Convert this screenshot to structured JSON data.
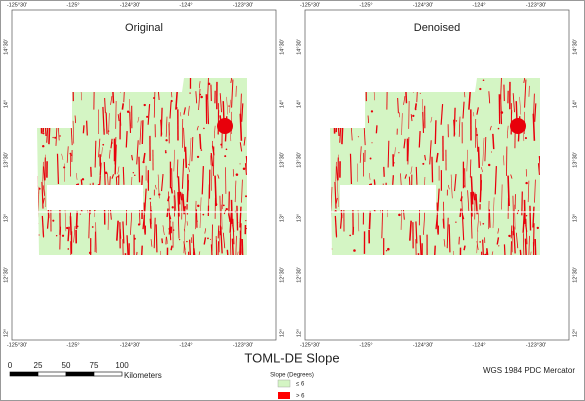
{
  "panels": [
    {
      "title": "Original",
      "top_labels": [
        "-125°30'",
        "-125°",
        "-124°30'",
        "-124°",
        "-123°30'"
      ],
      "bottom_labels": [
        "-125°30'",
        "-125°",
        "-124°30'",
        "-124°",
        "-123°30'"
      ],
      "left_labels": [
        "14°30'",
        "14°",
        "13°30'",
        "13°",
        "12°30'",
        "12°"
      ],
      "right_labels": [
        "14°30'",
        "14°",
        "13°30'",
        "13°",
        "12°30'",
        "12°"
      ]
    },
    {
      "title": "Denoised",
      "top_labels": [
        "-125°30'",
        "-125°",
        "-124°30'",
        "-124°",
        "-123°30'"
      ],
      "bottom_labels": [
        "-125°30'",
        "-125°",
        "-124°30'",
        "-124°",
        "-123°30'"
      ],
      "left_labels": [
        "14°30'",
        "14°",
        "13°30'",
        "13°",
        "12°30'",
        "12°"
      ],
      "right_labels": [
        "14°30'",
        "14°",
        "13°30'",
        "13°",
        "12°30'",
        "12°"
      ]
    }
  ],
  "legend": {
    "title": "TOML-DE Slope",
    "subtitle": "Slope (Degrees)",
    "items": [
      "≤ 6",
      "> 6"
    ]
  },
  "scale_bar": {
    "labels": [
      "0",
      "25",
      "50",
      "75",
      "100"
    ],
    "unit": "Kilometers"
  },
  "projection": "WGS 1984 PDC Mercator"
}
